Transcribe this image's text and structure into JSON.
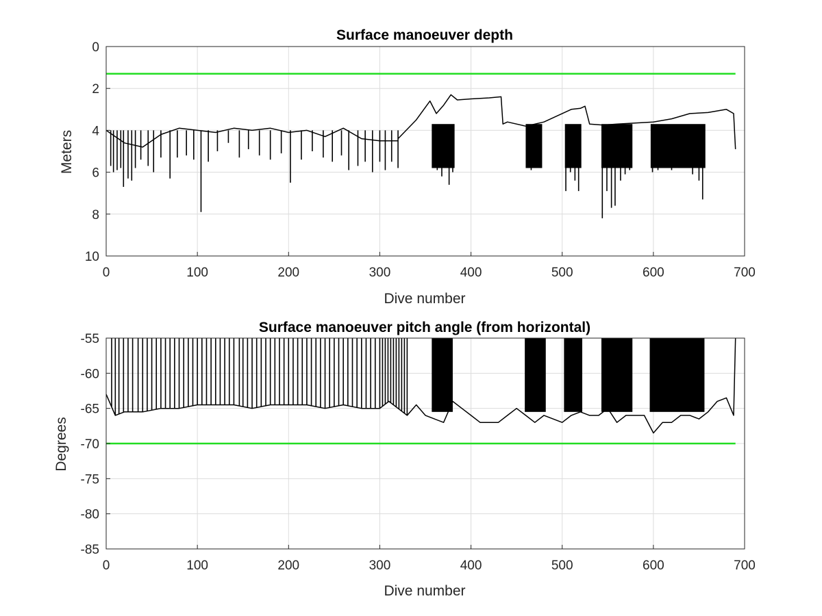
{
  "figure_colors": {
    "series": "#000000",
    "reference_line": "#22dd22",
    "grid": "#dcdcdc"
  },
  "chart_data": [
    {
      "type": "line",
      "title": "Surface manoeuver depth",
      "xlabel": "Dive number",
      "ylabel": "Meters",
      "xlim": [
        0,
        700
      ],
      "ylim": [
        0,
        10
      ],
      "y_reversed": true,
      "xticks": [
        0,
        100,
        200,
        300,
        400,
        500,
        600,
        700
      ],
      "yticks": [
        0,
        2,
        4,
        6,
        8,
        10
      ],
      "grid": true,
      "reference_line": {
        "y": 1.3,
        "x": [
          0,
          690
        ]
      },
      "series_segments": [
        {
          "x": [
            0,
            20,
            40,
            60,
            80,
            100,
            120,
            140,
            160,
            180,
            200,
            220,
            240,
            260,
            280,
            300,
            320
          ],
          "y": [
            4.0,
            4.6,
            4.8,
            4.2,
            3.9,
            4.0,
            4.1,
            3.9,
            4.0,
            3.9,
            4.1,
            4.0,
            4.3,
            3.9,
            4.4,
            4.5,
            4.5
          ]
        },
        {
          "x": [
            320,
            340,
            355,
            362,
            370,
            378,
            385,
            400,
            420,
            433,
            435,
            440,
            460,
            480,
            500,
            510,
            520,
            525,
            530,
            545,
            560,
            580,
            600,
            620,
            640,
            660,
            680,
            688,
            690
          ],
          "y": [
            4.4,
            3.5,
            2.6,
            3.2,
            2.8,
            2.3,
            2.55,
            2.5,
            2.45,
            2.4,
            3.7,
            3.6,
            3.8,
            3.6,
            3.2,
            3.0,
            2.95,
            2.85,
            3.7,
            3.75,
            3.7,
            3.65,
            3.6,
            3.45,
            3.2,
            3.15,
            3.0,
            3.2,
            4.9
          ]
        }
      ],
      "downward_spikes": [
        [
          5,
          5.7
        ],
        [
          8,
          6.0
        ],
        [
          12,
          5.9
        ],
        [
          16,
          5.8
        ],
        [
          19,
          6.7
        ],
        [
          24,
          6.3
        ],
        [
          28,
          6.4
        ],
        [
          32,
          5.8
        ],
        [
          38,
          5.4
        ],
        [
          46,
          5.7
        ],
        [
          52,
          6.0
        ],
        [
          60,
          5.3
        ],
        [
          70,
          6.3
        ],
        [
          78,
          5.3
        ],
        [
          88,
          5.2
        ],
        [
          96,
          5.4
        ],
        [
          104,
          7.9
        ],
        [
          112,
          5.5
        ],
        [
          122,
          5.0
        ],
        [
          134,
          4.6
        ],
        [
          146,
          5.3
        ],
        [
          156,
          4.9
        ],
        [
          168,
          5.2
        ],
        [
          180,
          5.4
        ],
        [
          192,
          5.1
        ],
        [
          202,
          6.5
        ],
        [
          214,
          5.4
        ],
        [
          226,
          5.0
        ],
        [
          238,
          5.3
        ],
        [
          248,
          5.5
        ],
        [
          258,
          5.2
        ],
        [
          266,
          5.9
        ],
        [
          276,
          5.7
        ],
        [
          284,
          5.5
        ],
        [
          292,
          6.0
        ],
        [
          300,
          5.5
        ],
        [
          306,
          5.9
        ],
        [
          313,
          5.5
        ],
        [
          320,
          5.8
        ],
        [
          358,
          5.8
        ],
        [
          363,
          5.9
        ],
        [
          368,
          6.2
        ],
        [
          372,
          5.6
        ],
        [
          376,
          6.6
        ],
        [
          380,
          6.0
        ],
        [
          462,
          5.7
        ],
        [
          466,
          5.9
        ],
        [
          471,
          5.5
        ],
        [
          475,
          5.8
        ],
        [
          504,
          6.9
        ],
        [
          509,
          6.0
        ],
        [
          514,
          6.4
        ],
        [
          518,
          6.9
        ],
        [
          544,
          8.2
        ],
        [
          549,
          6.9
        ],
        [
          554,
          7.7
        ],
        [
          558,
          7.6
        ],
        [
          564,
          6.4
        ],
        [
          569,
          6.1
        ],
        [
          574,
          5.9
        ],
        [
          599,
          6.0
        ],
        [
          605,
          5.9
        ],
        [
          612,
          5.7
        ],
        [
          620,
          5.9
        ],
        [
          628,
          5.8
        ],
        [
          636,
          5.7
        ],
        [
          643,
          6.1
        ],
        [
          650,
          6.4
        ],
        [
          654,
          7.3
        ]
      ],
      "dense_bands": [
        [
          357,
          382
        ],
        [
          460,
          478
        ],
        [
          503,
          521
        ],
        [
          543,
          577
        ],
        [
          597,
          657
        ]
      ]
    },
    {
      "type": "line",
      "title": "Surface manoeuver pitch angle (from horizontal)",
      "xlabel": "Dive number",
      "ylabel": "Degrees",
      "xlim": [
        0,
        700
      ],
      "ylim": [
        -85,
        -55
      ],
      "xticks": [
        0,
        100,
        200,
        300,
        400,
        500,
        600,
        700
      ],
      "yticks": [
        -55,
        -60,
        -65,
        -70,
        -75,
        -80,
        -85
      ],
      "grid": true,
      "reference_line": {
        "y": -70,
        "x": [
          0,
          690
        ]
      },
      "baseline": {
        "x": [
          0,
          10,
          20,
          40,
          60,
          80,
          100,
          120,
          140,
          160,
          180,
          200,
          220,
          240,
          260,
          280,
          300,
          310,
          320,
          330,
          340,
          350,
          360,
          370,
          380,
          390,
          400,
          410,
          420,
          430,
          440,
          450,
          460,
          470,
          480,
          490,
          500,
          510,
          520,
          530,
          540,
          550,
          560,
          570,
          580,
          590,
          600,
          610,
          620,
          630,
          640,
          650,
          660,
          670,
          680,
          688,
          690
        ],
        "y": [
          -63,
          -66,
          -65.5,
          -65.5,
          -65,
          -65,
          -64.5,
          -64.5,
          -64.5,
          -65,
          -64.5,
          -64.5,
          -64.5,
          -65,
          -64.5,
          -65,
          -65,
          -64,
          -65,
          -66,
          -64.5,
          -66,
          -66.5,
          -67,
          -64,
          -65,
          -66,
          -67,
          -67,
          -67,
          -66,
          -65,
          -66,
          -67,
          -66,
          -66.5,
          -67,
          -66,
          -65.5,
          -66,
          -66,
          -65,
          -67,
          -66,
          -66,
          -66,
          -68.5,
          -67,
          -67,
          -66,
          -66,
          -66.5,
          -65.5,
          -64,
          -63.5,
          -66,
          -55
        ]
      },
      "upward_spikes": [
        6,
        10,
        14,
        19,
        24,
        29,
        35,
        40,
        45,
        50,
        55,
        60,
        65,
        70,
        75,
        80,
        85,
        90,
        95,
        100,
        105,
        110,
        115,
        120,
        125,
        130,
        135,
        140,
        146,
        150,
        155,
        160,
        165,
        170,
        175,
        180,
        185,
        190,
        195,
        200,
        205,
        210,
        215,
        220,
        225,
        230,
        235,
        240,
        245,
        250,
        255,
        260,
        265,
        270,
        275,
        280,
        285,
        290,
        295,
        300,
        303,
        306,
        309,
        312,
        315,
        318,
        321,
        324,
        327,
        330
      ],
      "dense_bands": [
        [
          357,
          380
        ],
        [
          459,
          482
        ],
        [
          502,
          522
        ],
        [
          543,
          577
        ],
        [
          596,
          656
        ]
      ]
    }
  ]
}
